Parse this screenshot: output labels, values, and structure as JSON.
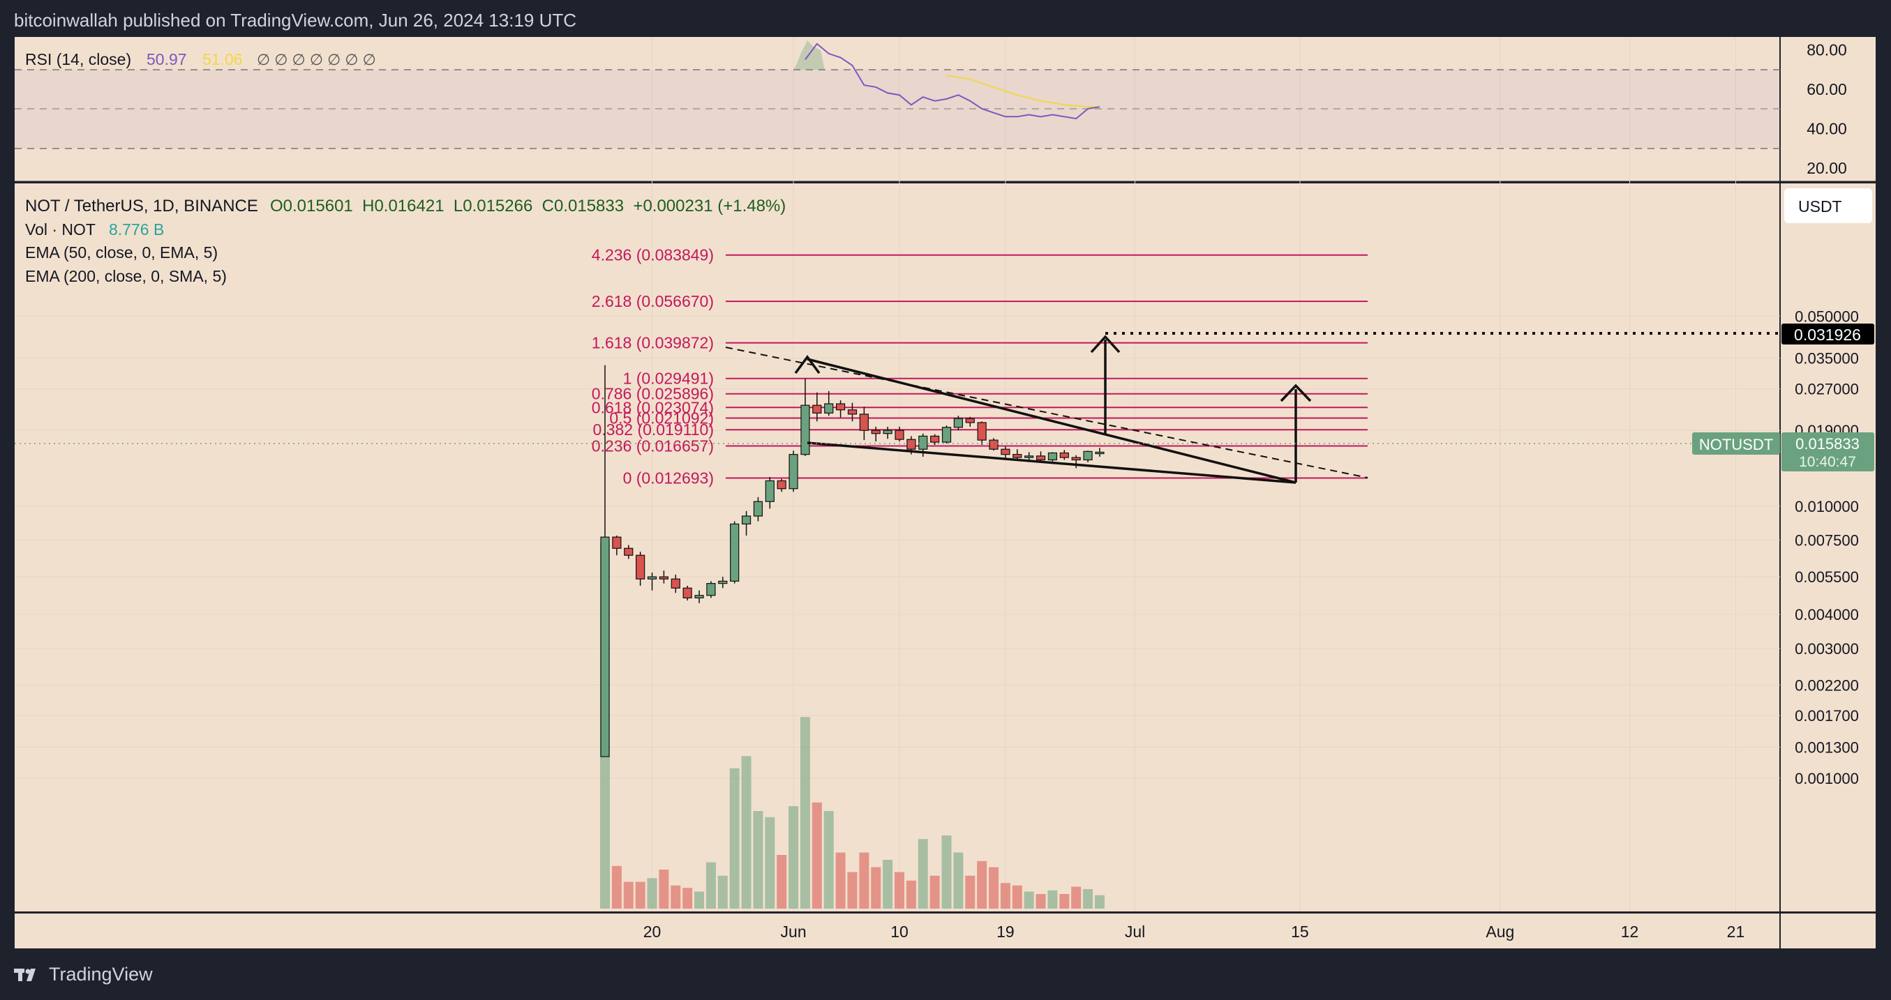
{
  "header": {
    "published": "bitcoinwallah published on TradingView.com, Jun 26, 2024 13:19 UTC"
  },
  "footer": {
    "brand": "TradingView"
  },
  "rsi_legend": {
    "title": "RSI (14, close)",
    "value": "50.97",
    "ma_value": "51.06",
    "blanks": "∅ ∅ ∅ ∅ ∅ ∅ ∅"
  },
  "main_legend": {
    "symbol": "NOT / TetherUS, 1D, BINANCE",
    "ohlc": "O0.015601  H0.016421  L0.015266  C0.015833  +0.000231 (+1.48%)",
    "vol_label": "Vol · NOT",
    "vol_value": "8.776 B",
    "ema50": "EMA (50, close, 0, EMA, 5)",
    "ema200": "EMA (200, close, 0, SMA, 5)"
  },
  "currency_button": "USDT",
  "price_badge": {
    "symbol": "NOTUSDT",
    "price": "0.015833",
    "countdown": "10:40:47"
  },
  "target_badge": "0.031926",
  "colors": {
    "bg_chart": "#f2e0ce",
    "bg_frame": "#1e222d",
    "up": "#6aa27f",
    "down": "#d9534f",
    "fib": "#c2185b",
    "rsi": "#7e57c2",
    "rsi_ma": "#f2d64b"
  },
  "chart_data": {
    "type": "candlestick",
    "price_scale": "log",
    "rsi_axis_ticks": [
      "80.00",
      "60.00",
      "40.00",
      "20.00"
    ],
    "price_axis_ticks": [
      {
        "v": 0.05,
        "label": "0.050000"
      },
      {
        "v": 0.035,
        "label": "0.035000"
      },
      {
        "v": 0.027,
        "label": "0.027000"
      },
      {
        "v": 0.019,
        "label": "0.019000"
      },
      {
        "v": 0.01,
        "label": "0.010000"
      },
      {
        "v": 0.0075,
        "label": "0.007500"
      },
      {
        "v": 0.0055,
        "label": "0.005500"
      },
      {
        "v": 0.004,
        "label": "0.004000"
      },
      {
        "v": 0.003,
        "label": "0.003000"
      },
      {
        "v": 0.0022,
        "label": "0.002200"
      },
      {
        "v": 0.0017,
        "label": "0.001700"
      },
      {
        "v": 0.0013,
        "label": "0.001300"
      },
      {
        "v": 0.001,
        "label": "0.001000"
      }
    ],
    "time_axis_labels": [
      {
        "day": 20,
        "label": "20"
      },
      {
        "day": 32,
        "label": "Jun"
      },
      {
        "day": 41,
        "label": "10"
      },
      {
        "day": 50,
        "label": "19"
      },
      {
        "day": 61,
        "label": "Jul"
      },
      {
        "day": 75,
        "label": "15"
      },
      {
        "day": 92,
        "label": "Aug"
      },
      {
        "day": 103,
        "label": "12"
      },
      {
        "day": 112,
        "label": "21"
      }
    ],
    "fib_levels": [
      {
        "ratio": "4.236",
        "price": 0.083849,
        "label": "4.236 (0.083849)"
      },
      {
        "ratio": "2.618",
        "price": 0.05667,
        "label": "2.618 (0.056670)"
      },
      {
        "ratio": "1.618",
        "price": 0.039872,
        "label": "1.618 (0.039872)"
      },
      {
        "ratio": "1",
        "price": 0.029491,
        "label": "1 (0.029491)"
      },
      {
        "ratio": "0.786",
        "price": 0.025896,
        "label": "0.786 (0.025896)"
      },
      {
        "ratio": "0.618",
        "price": 0.023074,
        "label": "0.618 (0.023074)"
      },
      {
        "ratio": "0.5",
        "price": 0.021092,
        "label": "0.5 (0.021092)"
      },
      {
        "ratio": "0.382",
        "price": 0.01911,
        "label": "0.382 (0.019110)"
      },
      {
        "ratio": "0.236",
        "price": 0.016657,
        "label": "0.236 (0.016657)"
      },
      {
        "ratio": "0",
        "price": 0.012693,
        "label": "0 (0.012693)"
      }
    ],
    "candles": [
      {
        "d": 16,
        "o": 0.0012,
        "h": 0.033,
        "l": 0.0012,
        "c": 0.0077,
        "v": 30
      },
      {
        "d": 17,
        "o": 0.0077,
        "h": 0.0078,
        "l": 0.0066,
        "c": 0.007,
        "v": 3.5
      },
      {
        "d": 18,
        "o": 0.007,
        "h": 0.0072,
        "l": 0.0064,
        "c": 0.0066,
        "v": 2.2
      },
      {
        "d": 19,
        "o": 0.0066,
        "h": 0.0068,
        "l": 0.0051,
        "c": 0.0054,
        "v": 2.2
      },
      {
        "d": 20,
        "o": 0.0054,
        "h": 0.0057,
        "l": 0.0049,
        "c": 0.0055,
        "v": 2.5
      },
      {
        "d": 21,
        "o": 0.0055,
        "h": 0.0058,
        "l": 0.0052,
        "c": 0.0054,
        "v": 3.2
      },
      {
        "d": 22,
        "o": 0.0054,
        "h": 0.0056,
        "l": 0.0048,
        "c": 0.005,
        "v": 1.9
      },
      {
        "d": 23,
        "o": 0.005,
        "h": 0.0051,
        "l": 0.0045,
        "c": 0.0046,
        "v": 1.7
      },
      {
        "d": 24,
        "o": 0.0046,
        "h": 0.0049,
        "l": 0.0044,
        "c": 0.0047,
        "v": 1.4
      },
      {
        "d": 25,
        "o": 0.0047,
        "h": 0.0053,
        "l": 0.0046,
        "c": 0.0052,
        "v": 3.8
      },
      {
        "d": 26,
        "o": 0.0052,
        "h": 0.0055,
        "l": 0.005,
        "c": 0.0053,
        "v": 2.7
      },
      {
        "d": 27,
        "o": 0.0053,
        "h": 0.0088,
        "l": 0.0052,
        "c": 0.0086,
        "v": 11.5
      },
      {
        "d": 28,
        "o": 0.0086,
        "h": 0.0096,
        "l": 0.0078,
        "c": 0.0092,
        "v": 12.5
      },
      {
        "d": 29,
        "o": 0.0092,
        "h": 0.0108,
        "l": 0.0088,
        "c": 0.0104,
        "v": 8.0
      },
      {
        "d": 30,
        "o": 0.0104,
        "h": 0.0128,
        "l": 0.0098,
        "c": 0.0124,
        "v": 7.5
      },
      {
        "d": 31,
        "o": 0.0124,
        "h": 0.0126,
        "l": 0.0113,
        "c": 0.0116,
        "v": 4.4
      },
      {
        "d": 32,
        "o": 0.0116,
        "h": 0.016,
        "l": 0.0113,
        "c": 0.0155,
        "v": 8.4
      },
      {
        "d": 33,
        "o": 0.0155,
        "h": 0.0295,
        "l": 0.0153,
        "c": 0.0235,
        "v": 15.7
      },
      {
        "d": 34,
        "o": 0.0235,
        "h": 0.0262,
        "l": 0.0205,
        "c": 0.022,
        "v": 8.7
      },
      {
        "d": 35,
        "o": 0.022,
        "h": 0.0265,
        "l": 0.0215,
        "c": 0.0238,
        "v": 8.0
      },
      {
        "d": 36,
        "o": 0.0238,
        "h": 0.0245,
        "l": 0.0212,
        "c": 0.0226,
        "v": 4.6
      },
      {
        "d": 37,
        "o": 0.0226,
        "h": 0.024,
        "l": 0.0205,
        "c": 0.0218,
        "v": 3.0
      },
      {
        "d": 38,
        "o": 0.0218,
        "h": 0.0232,
        "l": 0.0175,
        "c": 0.019,
        "v": 4.6
      },
      {
        "d": 39,
        "o": 0.019,
        "h": 0.0196,
        "l": 0.0173,
        "c": 0.0185,
        "v": 3.4
      },
      {
        "d": 40,
        "o": 0.0185,
        "h": 0.0196,
        "l": 0.0177,
        "c": 0.019,
        "v": 4.0
      },
      {
        "d": 41,
        "o": 0.019,
        "h": 0.0196,
        "l": 0.0173,
        "c": 0.0176,
        "v": 3.0
      },
      {
        "d": 42,
        "o": 0.0176,
        "h": 0.0181,
        "l": 0.0155,
        "c": 0.0162,
        "v": 2.3
      },
      {
        "d": 43,
        "o": 0.0162,
        "h": 0.0185,
        "l": 0.0152,
        "c": 0.0181,
        "v": 5.7
      },
      {
        "d": 44,
        "o": 0.0181,
        "h": 0.0184,
        "l": 0.0168,
        "c": 0.0172,
        "v": 2.7
      },
      {
        "d": 45,
        "o": 0.0172,
        "h": 0.0198,
        "l": 0.017,
        "c": 0.0195,
        "v": 6.0
      },
      {
        "d": 46,
        "o": 0.0195,
        "h": 0.0215,
        "l": 0.019,
        "c": 0.021,
        "v": 4.6
      },
      {
        "d": 47,
        "o": 0.021,
        "h": 0.0213,
        "l": 0.0196,
        "c": 0.0203,
        "v": 2.7
      },
      {
        "d": 48,
        "o": 0.0203,
        "h": 0.0205,
        "l": 0.0168,
        "c": 0.0175,
        "v": 3.9
      },
      {
        "d": 49,
        "o": 0.0175,
        "h": 0.0178,
        "l": 0.016,
        "c": 0.0162,
        "v": 3.4
      },
      {
        "d": 50,
        "o": 0.0162,
        "h": 0.0166,
        "l": 0.015,
        "c": 0.0155,
        "v": 2.1
      },
      {
        "d": 51,
        "o": 0.0155,
        "h": 0.0162,
        "l": 0.0148,
        "c": 0.0151,
        "v": 1.9
      },
      {
        "d": 52,
        "o": 0.0151,
        "h": 0.0158,
        "l": 0.0147,
        "c": 0.0153,
        "v": 1.4
      },
      {
        "d": 53,
        "o": 0.0153,
        "h": 0.0159,
        "l": 0.0146,
        "c": 0.0148,
        "v": 1.2
      },
      {
        "d": 54,
        "o": 0.0148,
        "h": 0.0158,
        "l": 0.0146,
        "c": 0.0157,
        "v": 1.5
      },
      {
        "d": 55,
        "o": 0.0157,
        "h": 0.0161,
        "l": 0.0148,
        "c": 0.0151,
        "v": 1.2
      },
      {
        "d": 56,
        "o": 0.0151,
        "h": 0.0154,
        "l": 0.0138,
        "c": 0.0148,
        "v": 1.8
      },
      {
        "d": 57,
        "o": 0.0148,
        "h": 0.016,
        "l": 0.0145,
        "c": 0.0159,
        "v": 1.6
      },
      {
        "d": 58,
        "o": 0.0156,
        "h": 0.0164,
        "l": 0.0152,
        "c": 0.0158,
        "v": 1.1
      }
    ],
    "rsi": [
      [
        33,
        75
      ],
      [
        34,
        83
      ],
      [
        35,
        78
      ],
      [
        36,
        76
      ],
      [
        37,
        72
      ],
      [
        38,
        62
      ],
      [
        39,
        61
      ],
      [
        40,
        58
      ],
      [
        41,
        57
      ],
      [
        42,
        52
      ],
      [
        43,
        56
      ],
      [
        44,
        54
      ],
      [
        45,
        55
      ],
      [
        46,
        57
      ],
      [
        47,
        54
      ],
      [
        48,
        50
      ],
      [
        49,
        48
      ],
      [
        50,
        46
      ],
      [
        51,
        46
      ],
      [
        52,
        47
      ],
      [
        53,
        46
      ],
      [
        54,
        47
      ],
      [
        55,
        46
      ],
      [
        56,
        45
      ],
      [
        57,
        50
      ],
      [
        58,
        51
      ]
    ],
    "rsi_ma": [
      [
        45,
        67
      ],
      [
        47,
        65
      ],
      [
        49,
        61
      ],
      [
        51,
        57
      ],
      [
        53,
        54
      ],
      [
        55,
        52
      ],
      [
        57,
        51
      ],
      [
        58,
        51
      ]
    ]
  }
}
